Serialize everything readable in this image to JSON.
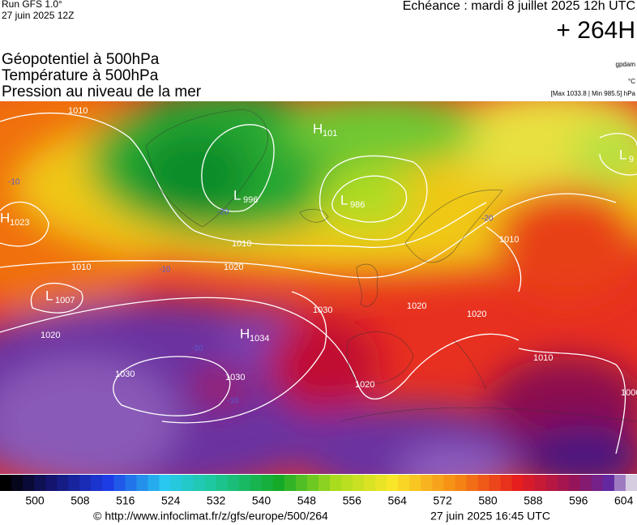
{
  "header": {
    "run": "Run GFS 1.0°",
    "run_date": "27 juin 2025 12Z",
    "echeance": "Echéance : mardi 8 juillet 2025 12h UTC",
    "lead": "+ 264H"
  },
  "fields": [
    "Géopotentiel à 500hPa",
    "Température à 500hPa",
    "Pression au niveau de la mer"
  ],
  "units": {
    "geopotential": "gpdam",
    "temperature": "°C",
    "pressure": "[Max 1033.8 | Min 985.5] hPa"
  },
  "pressure_centers": [
    {
      "letter": "H",
      "value": "1023"
    },
    {
      "letter": "L",
      "value": "1007"
    },
    {
      "letter": "H",
      "value": "1034"
    },
    {
      "letter": "L",
      "value": "986"
    },
    {
      "letter": "L",
      "value": "996"
    },
    {
      "letter": "H",
      "value": "101"
    },
    {
      "letter": "L",
      "value": "9"
    }
  ],
  "isobar_labels": [
    "1010",
    "1010",
    "1020",
    "1010",
    "1030",
    "1020",
    "1030",
    "1030",
    "1020",
    "1020",
    "1020",
    "1010",
    "1000",
    "1010"
  ],
  "temperature_labels": [
    "-10",
    "-10",
    "-10",
    "-20",
    "-20",
    "-10"
  ],
  "colorbar": {
    "labels": [
      "500",
      "508",
      "516",
      "524",
      "532",
      "540",
      "548",
      "556",
      "564",
      "572",
      "580",
      "588",
      "596",
      "604"
    ]
  },
  "footer": {
    "url": "© http://www.infoclimat.fr/z/gfs/europe/500/264",
    "timestamp": "27 juin 2025 16:45 UTC"
  }
}
